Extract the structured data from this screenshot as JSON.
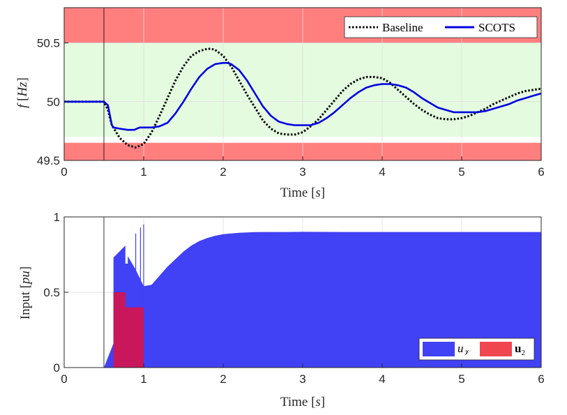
{
  "chart_data": [
    {
      "type": "line",
      "x_label_text": "Time",
      "x_label_unit": "s",
      "y_label_symbol": "f",
      "y_label_unit": "Hz",
      "xlim": [
        0,
        6
      ],
      "ylim": [
        49.5,
        50.8
      ],
      "x_ticks": [
        "0",
        "1",
        "2",
        "3",
        "4",
        "5",
        "6"
      ],
      "y_ticks": [
        "49.5",
        "50",
        "50.5"
      ],
      "grid": true,
      "legend_position": "top-right",
      "event_line_x": 0.5,
      "colors": {
        "unsafe_band": "#ff7f7f",
        "safe_band": "#e4fbe0",
        "baseline": "#000000",
        "scots": "#0000e0"
      },
      "safe_band": [
        49.7,
        50.5
      ],
      "unsafe_bands": [
        [
          50.5,
          50.8
        ],
        [
          49.5,
          49.65
        ]
      ],
      "series": [
        {
          "name": "Baseline",
          "style": "dotted",
          "x": [
            0,
            0.5,
            0.55,
            0.6,
            0.7,
            0.8,
            0.9,
            1.0,
            1.1,
            1.2,
            1.3,
            1.4,
            1.5,
            1.6,
            1.7,
            1.8,
            1.85,
            1.9,
            2.0,
            2.1,
            2.2,
            2.3,
            2.4,
            2.5,
            2.6,
            2.7,
            2.8,
            2.9,
            3.0,
            3.1,
            3.2,
            3.3,
            3.4,
            3.5,
            3.6,
            3.7,
            3.8,
            3.9,
            4.0,
            4.1,
            4.2,
            4.3,
            4.4,
            4.5,
            4.6,
            4.7,
            4.8,
            4.9,
            5.0,
            5.1,
            5.2,
            5.3,
            5.4,
            5.5,
            5.6,
            5.7,
            5.8,
            5.9,
            6.0
          ],
          "y": [
            50.0,
            50.0,
            49.93,
            49.8,
            49.69,
            49.63,
            49.61,
            49.64,
            49.74,
            49.88,
            50.03,
            50.18,
            50.3,
            50.39,
            50.43,
            50.45,
            50.45,
            50.44,
            50.39,
            50.3,
            50.18,
            50.06,
            49.95,
            49.84,
            49.77,
            49.73,
            49.72,
            49.72,
            49.74,
            49.79,
            49.85,
            49.93,
            50.01,
            50.09,
            50.15,
            50.19,
            50.21,
            50.21,
            50.2,
            50.16,
            50.1,
            50.04,
            49.98,
            49.93,
            49.89,
            49.86,
            49.85,
            49.85,
            49.86,
            49.88,
            49.91,
            49.94,
            49.98,
            50.01,
            50.04,
            50.07,
            50.09,
            50.1,
            50.11
          ]
        },
        {
          "name": "SCOTS",
          "style": "solid",
          "x": [
            0,
            0.5,
            0.55,
            0.6,
            0.62,
            0.7,
            0.8,
            0.88,
            0.95,
            1.0,
            1.05,
            1.1,
            1.2,
            1.3,
            1.4,
            1.5,
            1.6,
            1.7,
            1.8,
            1.9,
            2.0,
            2.05,
            2.1,
            2.2,
            2.3,
            2.4,
            2.5,
            2.6,
            2.7,
            2.8,
            2.9,
            3.0,
            3.1,
            3.2,
            3.3,
            3.4,
            3.5,
            3.6,
            3.7,
            3.8,
            3.9,
            4.0,
            4.1,
            4.2,
            4.3,
            4.4,
            4.5,
            4.6,
            4.7,
            4.8,
            4.9,
            5.0,
            5.1,
            5.2,
            5.3,
            5.4,
            5.5,
            5.6,
            5.7,
            5.8,
            5.9,
            6.0
          ],
          "y": [
            50.0,
            50.0,
            49.97,
            49.8,
            49.78,
            49.77,
            49.76,
            49.76,
            49.78,
            49.78,
            49.78,
            49.78,
            49.79,
            49.82,
            49.9,
            50.0,
            50.11,
            50.21,
            50.28,
            50.32,
            50.33,
            50.33,
            50.32,
            50.27,
            50.18,
            50.07,
            49.96,
            49.88,
            49.83,
            49.81,
            49.8,
            49.8,
            49.8,
            49.82,
            49.86,
            49.91,
            49.97,
            50.03,
            50.08,
            50.12,
            50.14,
            50.15,
            50.15,
            50.14,
            50.12,
            50.08,
            50.03,
            49.99,
            49.95,
            49.93,
            49.91,
            49.91,
            49.91,
            49.91,
            49.92,
            49.94,
            49.96,
            49.98,
            50.01,
            50.03,
            50.05,
            50.07
          ]
        }
      ]
    },
    {
      "type": "area",
      "x_label_text": "Time",
      "x_label_unit": "s",
      "y_label_text": "Input",
      "y_label_unit": "pu",
      "xlim": [
        0,
        6
      ],
      "ylim": [
        0,
        1
      ],
      "x_ticks": [
        "0",
        "1",
        "2",
        "3",
        "4",
        "5",
        "6"
      ],
      "y_ticks": [
        "0",
        "0.5",
        "1"
      ],
      "grid": true,
      "legend_position": "bottom-right",
      "event_line_x": 0.5,
      "colors": {
        "uV": "#4141f5",
        "u2": "#f04650",
        "overlap": "#c8175a"
      },
      "series": [
        {
          "name": "uV",
          "x": [
            0.5,
            0.62,
            0.62,
            0.77,
            0.77,
            0.8,
            0.8,
            0.9,
            1.0,
            1.1,
            1.2,
            1.3,
            1.4,
            1.5,
            1.6,
            1.7,
            1.8,
            1.9,
            2.0,
            2.2,
            2.4,
            2.6,
            2.8,
            3.0,
            3.5,
            4.0,
            5.0,
            6.0
          ],
          "y": [
            0.0,
            0.16,
            0.73,
            0.81,
            0.69,
            0.69,
            0.74,
            0.65,
            0.54,
            0.55,
            0.61,
            0.67,
            0.72,
            0.77,
            0.81,
            0.84,
            0.86,
            0.875,
            0.885,
            0.895,
            0.899,
            0.9,
            0.9,
            0.901,
            0.9,
            0.9,
            0.9,
            0.9
          ]
        },
        {
          "name": "u2",
          "x": [
            0.62,
            0.62,
            0.77,
            0.77,
            1.0,
            1.0
          ],
          "y": [
            0.0,
            0.5,
            0.5,
            0.4,
            0.4,
            0.0
          ]
        }
      ]
    }
  ],
  "legend_labels": {
    "baseline": "Baseline",
    "scots": "SCOTS",
    "uV_sym": "u",
    "uV_sub": "𝒱",
    "u2_sym": "u",
    "u2_sub": "2"
  }
}
